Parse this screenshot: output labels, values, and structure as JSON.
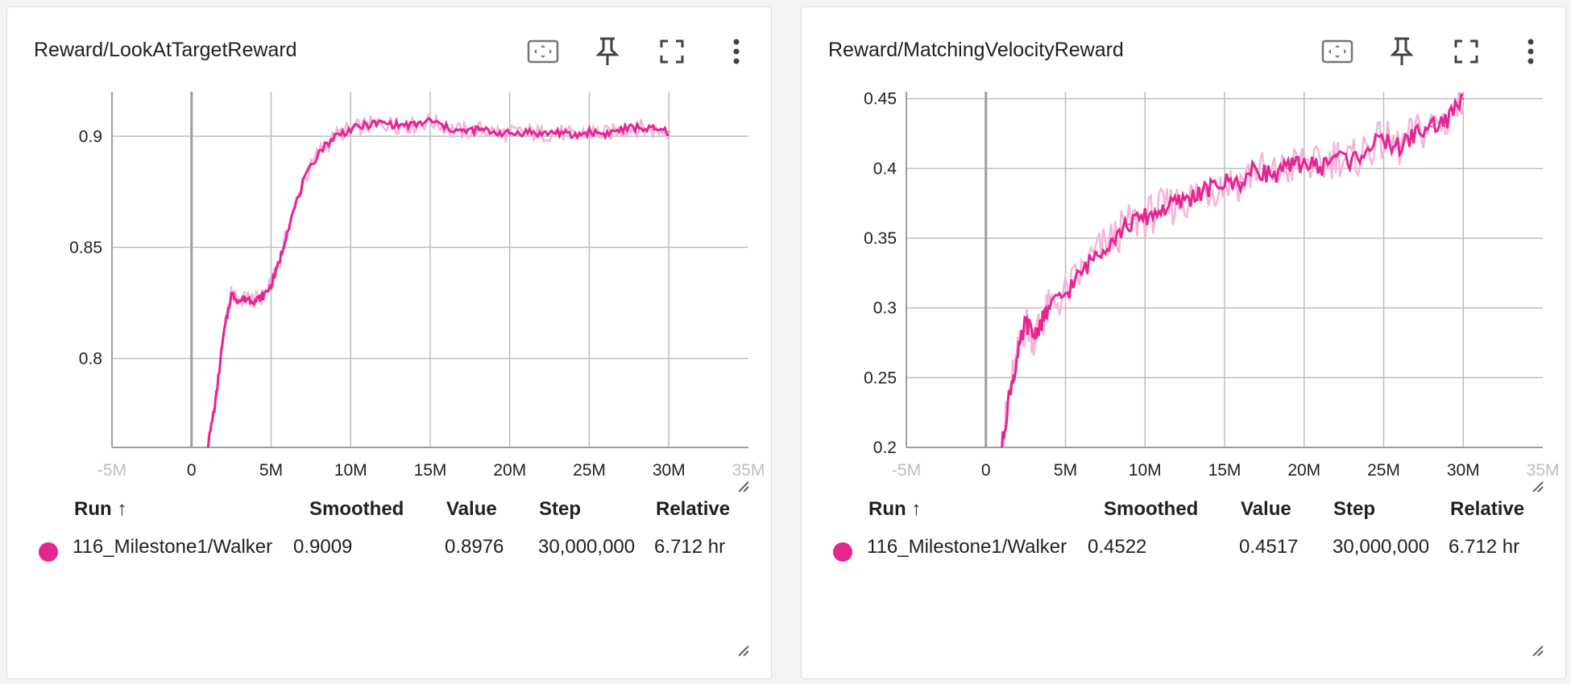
{
  "colors": {
    "series": "#e52592",
    "series_raw": "#f4b5d8",
    "grid": "#bdbdbd",
    "axis": "#9e9e9e"
  },
  "icons": [
    "fit-domain-icon",
    "pin-icon",
    "fullscreen-icon",
    "more-vert-icon",
    "resize-handle-icon"
  ],
  "table_headers": {
    "run": "Run ↑",
    "smoothed": "Smoothed",
    "value": "Value",
    "step": "Step",
    "relative": "Relative"
  },
  "cards": [
    {
      "title": "Reward/LookAtTargetReward",
      "row": {
        "run": "116_Milestone1/Walker",
        "smoothed": "0.9009",
        "value": "0.8976",
        "step": "30,000,000",
        "relative": "6.712 hr"
      }
    },
    {
      "title": "Reward/MatchingVelocityReward",
      "row": {
        "run": "116_Milestone1/Walker",
        "smoothed": "0.4522",
        "value": "0.4517",
        "step": "30,000,000",
        "relative": "6.712 hr"
      }
    }
  ],
  "chart_data": [
    {
      "type": "line",
      "title": "Reward/LookAtTargetReward",
      "xlabel": "",
      "ylabel": "",
      "xlim": [
        -5000000,
        35000000
      ],
      "ylim": [
        0.76,
        0.92
      ],
      "x_ticks": [
        "-5M",
        "0",
        "5M",
        "10M",
        "15M",
        "20M",
        "25M",
        "30M",
        "35M"
      ],
      "y_ticks": [
        "0.8",
        "0.85",
        "0.9"
      ],
      "grid": true,
      "series": [
        {
          "name": "116_Milestone1/Walker",
          "x": [
            1000000,
            1500000,
            2000000,
            2500000,
            3000000,
            3500000,
            4000000,
            4500000,
            5000000,
            5500000,
            6000000,
            7000000,
            8000000,
            9000000,
            10000000,
            11000000,
            12000000,
            13000000,
            14000000,
            15000000,
            16000000,
            17000000,
            18000000,
            19000000,
            20000000,
            21000000,
            22000000,
            23000000,
            24000000,
            25000000,
            26000000,
            27000000,
            28000000,
            29000000,
            30000000
          ],
          "values": [
            0.76,
            0.78,
            0.81,
            0.829,
            0.826,
            0.827,
            0.826,
            0.828,
            0.833,
            0.843,
            0.857,
            0.879,
            0.893,
            0.9,
            0.903,
            0.905,
            0.906,
            0.905,
            0.905,
            0.907,
            0.904,
            0.902,
            0.903,
            0.902,
            0.901,
            0.902,
            0.901,
            0.902,
            0.9,
            0.902,
            0.901,
            0.903,
            0.904,
            0.903,
            0.902
          ]
        }
      ]
    },
    {
      "type": "line",
      "title": "Reward/MatchingVelocityReward",
      "xlabel": "",
      "ylabel": "",
      "xlim": [
        -5000000,
        35000000
      ],
      "ylim": [
        0.2,
        0.455
      ],
      "x_ticks": [
        "-5M",
        "0",
        "5M",
        "10M",
        "15M",
        "20M",
        "25M",
        "30M",
        "35M"
      ],
      "y_ticks": [
        "0.2",
        "0.25",
        "0.3",
        "0.35",
        "0.4",
        "0.45"
      ],
      "grid": true,
      "series": [
        {
          "name": "116_Milestone1/Walker",
          "x": [
            1000000,
            1500000,
            2000000,
            2500000,
            3000000,
            3500000,
            4000000,
            5000000,
            6000000,
            7000000,
            8000000,
            9000000,
            10000000,
            11000000,
            12000000,
            13000000,
            14000000,
            15000000,
            16000000,
            17000000,
            18000000,
            19000000,
            20000000,
            21000000,
            22000000,
            23000000,
            24000000,
            25000000,
            26000000,
            27000000,
            28000000,
            29000000,
            30000000
          ],
          "values": [
            0.2,
            0.24,
            0.265,
            0.29,
            0.28,
            0.29,
            0.3,
            0.31,
            0.325,
            0.34,
            0.35,
            0.36,
            0.365,
            0.37,
            0.375,
            0.38,
            0.385,
            0.39,
            0.39,
            0.4,
            0.395,
            0.4,
            0.405,
            0.4,
            0.41,
            0.405,
            0.415,
            0.42,
            0.415,
            0.425,
            0.43,
            0.435,
            0.45
          ]
        }
      ]
    }
  ]
}
